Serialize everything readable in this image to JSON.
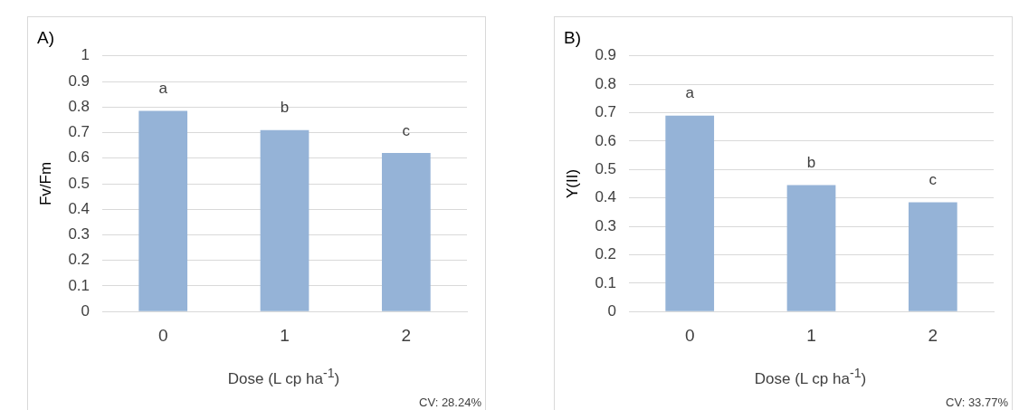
{
  "chart_data": [
    {
      "type": "bar",
      "title": "A)",
      "xlabel": "Dose (L cp ha$^{-1}$)",
      "ylabel": "Fv/Fm",
      "categories": [
        "0",
        "1",
        "2"
      ],
      "values": [
        0.785,
        0.71,
        0.62
      ],
      "color": "#95b3d7",
      "ylim": [
        0,
        1
      ],
      "yticks": [
        0,
        0.1,
        0.2,
        0.3,
        0.4,
        0.5,
        0.6,
        0.7,
        0.8,
        0.9,
        1
      ],
      "grid": "y",
      "legend": false,
      "annotations": [
        {
          "text": "a",
          "x": "0",
          "y": 0.785
        },
        {
          "text": "b",
          "x": "1",
          "y": 0.71
        },
        {
          "text": "c",
          "x": "2",
          "y": 0.62
        },
        "CV: 28.24%"
      ]
    },
    {
      "type": "bar",
      "title": "B)",
      "xlabel": "Dose (L cp ha$^{-1}$)",
      "ylabel": "Y(II)",
      "categories": [
        "0",
        "1",
        "2"
      ],
      "values": [
        0.69,
        0.445,
        0.385
      ],
      "color": "#95b3d7",
      "ylim": [
        0,
        0.9
      ],
      "yticks": [
        0,
        0.1,
        0.2,
        0.3,
        0.4,
        0.5,
        0.6,
        0.7,
        0.8,
        0.9
      ],
      "grid": "y",
      "legend": false,
      "annotations": [
        {
          "text": "a",
          "x": "0",
          "y": 0.69
        },
        {
          "text": "b",
          "x": "1",
          "y": 0.445
        },
        {
          "text": "c",
          "x": "2",
          "y": 0.385
        },
        "CV: 33.77%"
      ]
    }
  ]
}
